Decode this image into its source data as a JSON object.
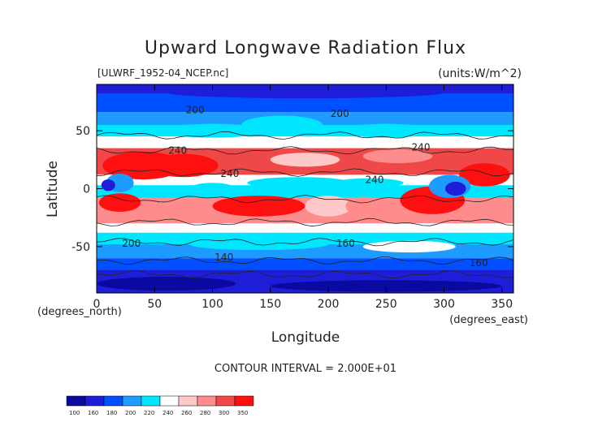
{
  "chart_data": {
    "type": "heatmap",
    "title": "Upward Longwave Radiation Flux",
    "subtitle_left": "[ULWRF_1952-04_NCEP.nc]",
    "subtitle_right": "(units:W/m^2)",
    "xlabel": "Longitude",
    "ylabel": "Latitude",
    "x_unit_note": "(degrees_east)",
    "y_unit_note": "(degrees_north)",
    "xlim": [
      0,
      360
    ],
    "ylim": [
      -90,
      90
    ],
    "x_ticks": [
      0,
      50,
      100,
      150,
      200,
      250,
      300,
      350
    ],
    "y_ticks": [
      -50,
      0,
      50
    ],
    "contour_interval_text": "CONTOUR INTERVAL = 2.000E+01",
    "contour_labels": [
      "200",
      "240",
      "240",
      "240",
      "240",
      "200",
      "200",
      "160",
      "140",
      "160"
    ],
    "colorbar": {
      "levels": [
        "100",
        "160",
        "180",
        "200",
        "220",
        "240",
        "260",
        "280",
        "300",
        "350"
      ],
      "colors": [
        "#0a0aa0",
        "#1e1ed8",
        "#0050ff",
        "#1e9bff",
        "#00e6ff",
        "#ffffff",
        "#ffc8c8",
        "#ff8c8c",
        "#f04848",
        "#ff1010"
      ]
    },
    "grid": false
  }
}
